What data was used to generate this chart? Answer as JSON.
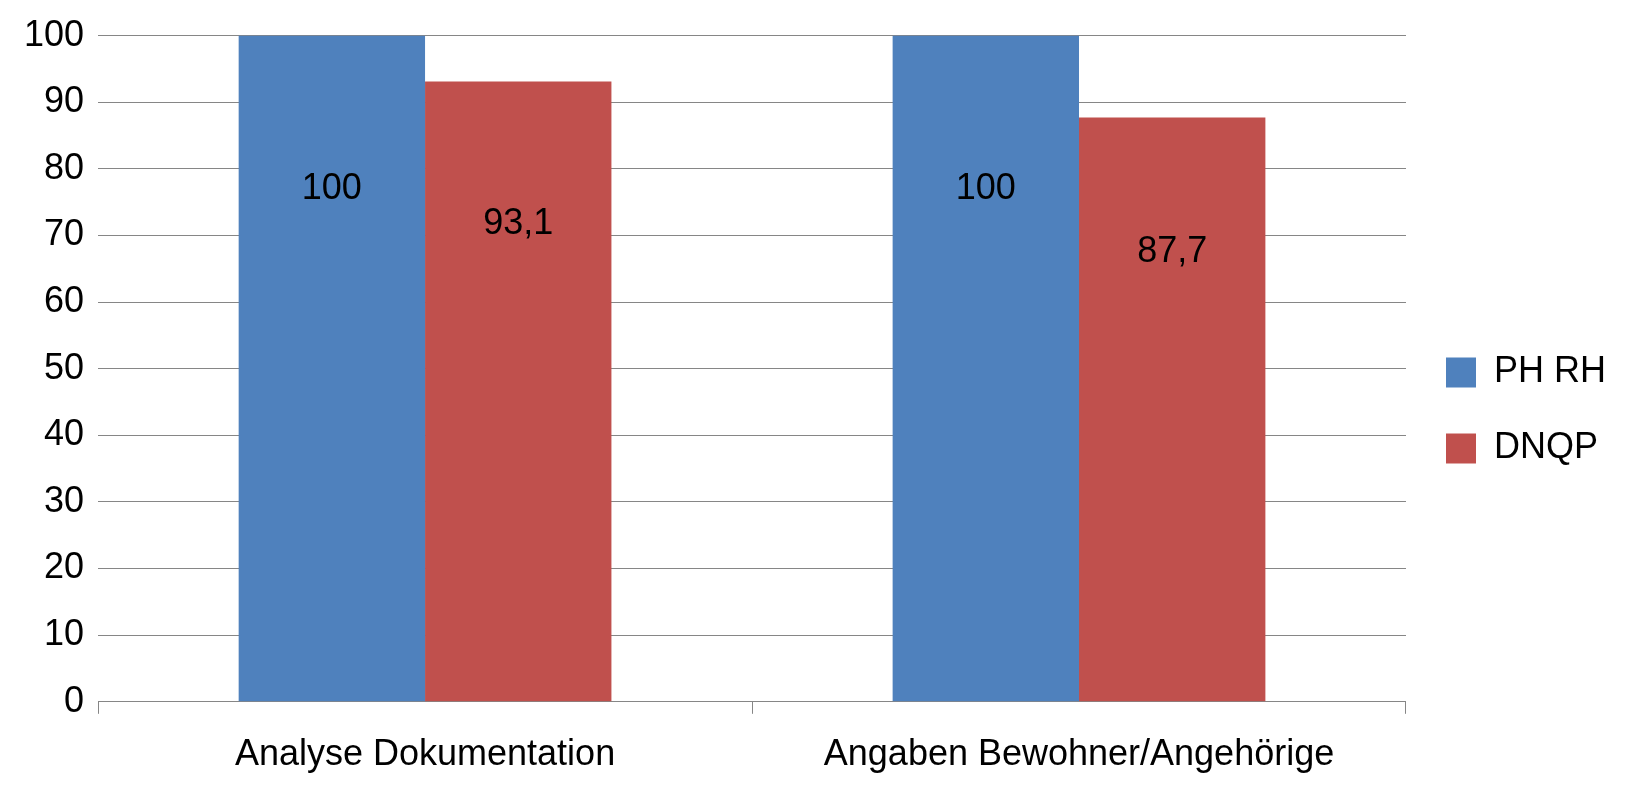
{
  "chart_data": {
    "type": "bar",
    "categories": [
      "Analyse Dokumentation",
      "Angaben Bewohner/Angehörige"
    ],
    "series": [
      {
        "name": "PH RH",
        "color": "#4f81bd",
        "values": [
          100,
          100
        ],
        "value_labels": [
          "100",
          "100"
        ]
      },
      {
        "name": "DNQP",
        "color": "#c0504d",
        "values": [
          93.1,
          87.7
        ],
        "value_labels": [
          "93,1",
          "87,7"
        ]
      }
    ],
    "ylim": [
      0,
      100
    ],
    "yticks": [
      0,
      10,
      20,
      30,
      40,
      50,
      60,
      70,
      80,
      90,
      100
    ],
    "grid": "y",
    "legend": "right"
  }
}
